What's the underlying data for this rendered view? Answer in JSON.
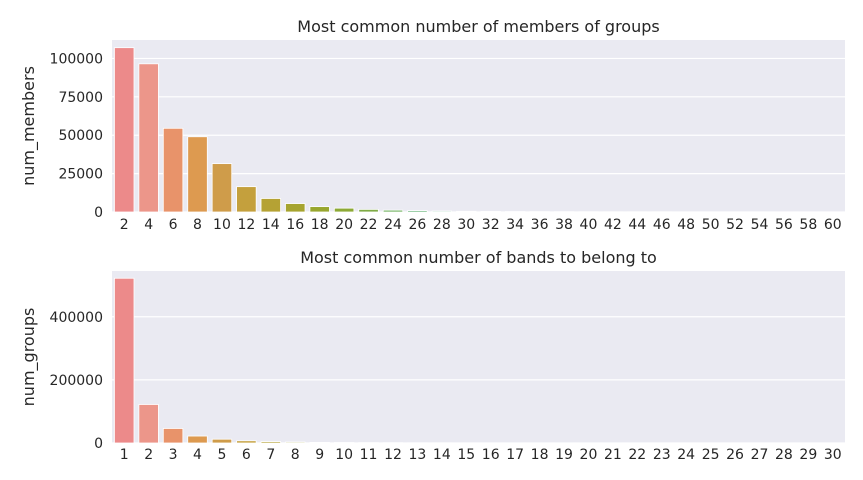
{
  "chart_data": [
    {
      "type": "bar",
      "title": "Most common number of members of groups",
      "xlabel": "",
      "ylabel": "num_members",
      "ylim": [
        0,
        112000
      ],
      "yticks": [
        0,
        25000,
        50000,
        75000,
        100000
      ],
      "grid": true,
      "categories": [
        "2",
        "4",
        "6",
        "8",
        "10",
        "12",
        "14",
        "16",
        "18",
        "20",
        "22",
        "24",
        "26",
        "28",
        "30",
        "32",
        "34",
        "36",
        "38",
        "40",
        "42",
        "44",
        "46",
        "48",
        "50",
        "52",
        "54",
        "56",
        "58",
        "60"
      ],
      "values": [
        107000,
        96500,
        54500,
        49000,
        31500,
        16500,
        8800,
        5500,
        3500,
        2500,
        1700,
        1200,
        900,
        600,
        450,
        350,
        280,
        220,
        180,
        150,
        120,
        100,
        90,
        80,
        70,
        60,
        50,
        45,
        40,
        35
      ],
      "colors": [
        "#ec8a8a",
        "#ec968a",
        "#e8936a",
        "#dd9a50",
        "#cf9c4a",
        "#c4a03d",
        "#b5a234",
        "#a6a42f",
        "#98a62e",
        "#8da936",
        "#7faa45",
        "#69ae58",
        "#5aae6c",
        "#55ae80",
        "#52ad90",
        "#50ad9e",
        "#50acab",
        "#52abbb",
        "#56a9cc",
        "#5aa6dd",
        "#6aa0e4",
        "#889ae6",
        "#9f94e6",
        "#b38de3",
        "#c485e0",
        "#d67dd8",
        "#e178c8",
        "#e77ebb",
        "#ea83ad",
        "#ec889f"
      ]
    },
    {
      "type": "bar",
      "title": "Most common number of bands to belong to",
      "xlabel": "",
      "ylabel": "num_groups",
      "ylim": [
        0,
        545000
      ],
      "yticks": [
        0,
        200000,
        400000
      ],
      "grid": true,
      "categories": [
        "1",
        "2",
        "3",
        "4",
        "5",
        "6",
        "7",
        "8",
        "9",
        "10",
        "11",
        "12",
        "13",
        "14",
        "15",
        "16",
        "17",
        "18",
        "19",
        "20",
        "21",
        "22",
        "23",
        "24",
        "25",
        "26",
        "27",
        "28",
        "29",
        "30"
      ],
      "values": [
        522000,
        122000,
        46000,
        22000,
        12000,
        7000,
        4500,
        3000,
        2000,
        1500,
        1100,
        850,
        650,
        500,
        400,
        320,
        260,
        210,
        170,
        140,
        115,
        95,
        80,
        65,
        55,
        45,
        38,
        32,
        27,
        23
      ],
      "colors": [
        "#ec8a8a",
        "#ec968a",
        "#e8936a",
        "#dd9a50",
        "#cf9c4a",
        "#c4a03d",
        "#b5a234",
        "#a6a42f",
        "#98a62e",
        "#8da936",
        "#7faa45",
        "#69ae58",
        "#5aae6c",
        "#55ae80",
        "#52ad90",
        "#50ad9e",
        "#50acab",
        "#52abbb",
        "#56a9cc",
        "#5aa6dd",
        "#6aa0e4",
        "#889ae6",
        "#9f94e6",
        "#b38de3",
        "#c485e0",
        "#d67dd8",
        "#e178c8",
        "#e77ebb",
        "#ea83ad",
        "#ec889f"
      ]
    }
  ],
  "style": {
    "plot_background": "#eaeaf2",
    "grid_color": "#ffffff",
    "text_color": "#262626"
  }
}
